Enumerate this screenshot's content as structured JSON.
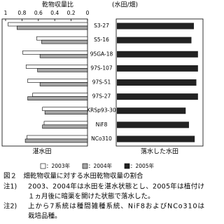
{
  "chart_data": {
    "type": "butterfly-bar",
    "title": "乾物収量比",
    "subtitle": "(水田/畑)",
    "categories": [
      "S3-27",
      "S5-16",
      "95GA-18",
      "97S-107",
      "97S-51",
      "97S-27",
      "KRSp93-30",
      "NiF8",
      "NCo310"
    ],
    "series": [
      {
        "name": "：2003年",
        "color": "#ffffff",
        "panel": "left",
        "values": [
          0.97,
          0.62,
          0.79,
          0.75,
          0.73,
          0.67,
          0.55,
          0.53,
          0.74
        ]
      },
      {
        "name": "：2004年",
        "color": "#a6a6a6",
        "panel": "left",
        "values": [
          0.86,
          0.56,
          0.58,
          0.61,
          0.58,
          0.73,
          0.52,
          0.55,
          0.76
        ]
      },
      {
        "name": "：2005年",
        "color": "#222222",
        "panel": "right",
        "values": [
          0.94,
          0.91,
          0.99,
          0.99,
          0.97,
          0.99,
          0.84,
          0.88,
          0.95
        ]
      }
    ],
    "xlim": [
      0,
      1
    ],
    "xticks": [
      1,
      0.8,
      0.6,
      0.4,
      0.2,
      0
    ],
    "left_label": "湛水田",
    "right_label": "落水した水田"
  },
  "caption": {
    "title": "図２　畑乾物収量に対する水田乾物収量の割合",
    "notes": [
      {
        "label": "注1)",
        "lines": [
          "2003、2004年は水田を湛水状態とし、2005年は植付け",
          "１ヵ月後に暗渠を開けた状態で落水した。"
        ]
      },
      {
        "label": "注2)",
        "lines": [
          "上から7系統は種間雑種系統、NiF8およびNCo310は",
          "栽培品種。"
        ]
      }
    ]
  }
}
